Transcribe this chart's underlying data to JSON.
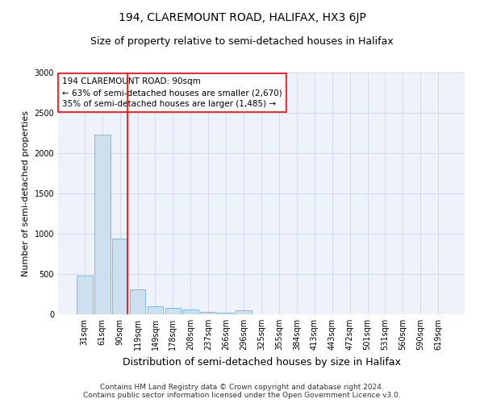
{
  "title": "194, CLAREMOUNT ROAD, HALIFAX, HX3 6JP",
  "subtitle": "Size of property relative to semi-detached houses in Halifax",
  "xlabel": "Distribution of semi-detached houses by size in Halifax",
  "ylabel": "Number of semi-detached properties",
  "footer_line1": "Contains HM Land Registry data © Crown copyright and database right 2024.",
  "footer_line2": "Contains public sector information licensed under the Open Government Licence v3.0.",
  "bar_labels": [
    "31sqm",
    "61sqm",
    "90sqm",
    "119sqm",
    "149sqm",
    "178sqm",
    "208sqm",
    "237sqm",
    "266sqm",
    "296sqm",
    "325sqm",
    "355sqm",
    "384sqm",
    "413sqm",
    "443sqm",
    "472sqm",
    "501sqm",
    "531sqm",
    "560sqm",
    "590sqm",
    "619sqm"
  ],
  "bar_values": [
    480,
    2230,
    940,
    310,
    105,
    85,
    60,
    35,
    20,
    55,
    0,
    0,
    0,
    0,
    0,
    0,
    0,
    0,
    0,
    0,
    0
  ],
  "bar_color": "#cce0f0",
  "bar_edge_color": "#7bafd4",
  "red_line_x": 2,
  "annotation_text_line1": "194 CLAREMOUNT ROAD: 90sqm",
  "annotation_text_line2": "← 63% of semi-detached houses are smaller (2,670)",
  "annotation_text_line3": "35% of semi-detached houses are larger (1,485) →",
  "ylim": [
    0,
    3000
  ],
  "yticks": [
    0,
    500,
    1000,
    1500,
    2000,
    2500,
    3000
  ],
  "grid_color": "#d0d8e8",
  "bg_color": "#eef2fa",
  "title_fontsize": 10,
  "subtitle_fontsize": 9,
  "xlabel_fontsize": 9,
  "ylabel_fontsize": 8,
  "tick_fontsize": 7,
  "annotation_fontsize": 7.5,
  "footer_fontsize": 6.5
}
